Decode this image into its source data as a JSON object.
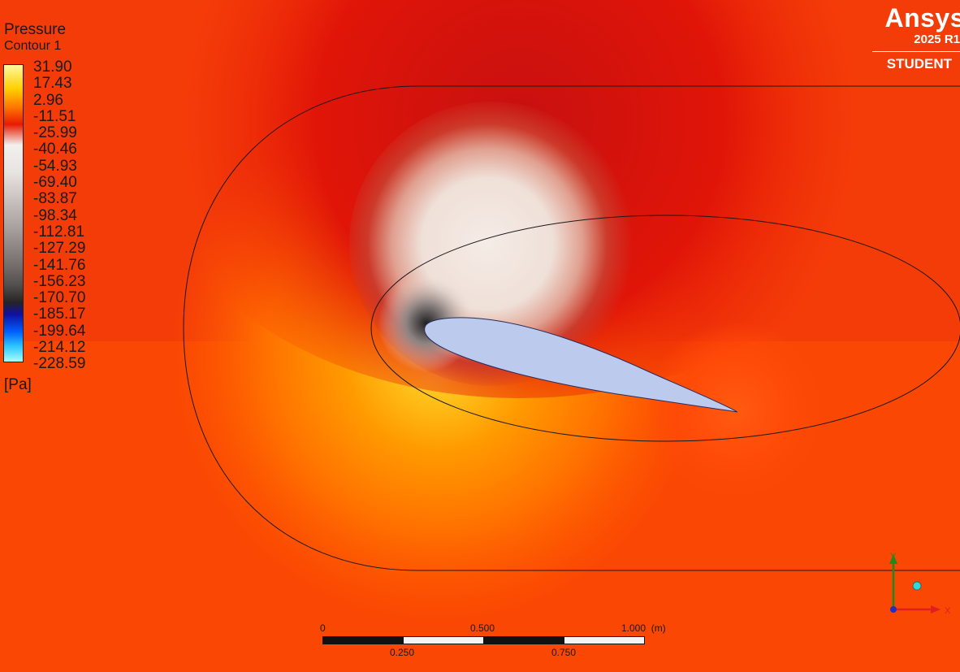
{
  "legend": {
    "title": "Pressure",
    "subtitle": "Contour 1",
    "unit": "[Pa]",
    "ticks": [
      "31.90",
      "17.43",
      "2.96",
      "-11.51",
      "-25.99",
      "-40.46",
      "-54.93",
      "-69.40",
      "-83.87",
      "-98.34",
      "-112.81",
      "-127.29",
      "-141.76",
      "-156.23",
      "-170.70",
      "-185.17",
      "-199.64",
      "-214.12",
      "-228.59"
    ]
  },
  "brand": {
    "name": "Ansys",
    "version": "2025 R1",
    "edition": "STUDENT"
  },
  "scale": {
    "top_labels": [
      "0",
      "0.500",
      "1.000  (m)"
    ],
    "bottom_labels": [
      "0.250",
      "0.750"
    ]
  },
  "axes": {
    "y_label": "Y",
    "x_label": "X"
  }
}
